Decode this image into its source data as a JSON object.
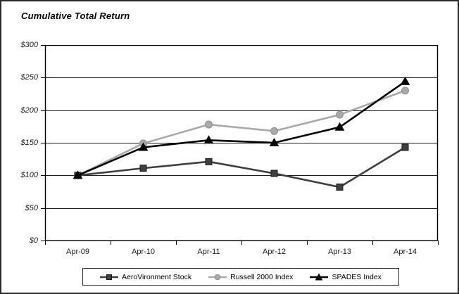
{
  "chart_data": {
    "type": "line",
    "title": "Cumulative Total Return",
    "categories": [
      "Apr-09",
      "Apr-10",
      "Apr-11",
      "Apr-12",
      "Apr-13",
      "Apr-14"
    ],
    "series": [
      {
        "name": "AeroVironment Stock",
        "marker": "square",
        "color": "#3f3f3f",
        "marker_edge": "#1a1a1a",
        "values": [
          100,
          111,
          121,
          103,
          82,
          143
        ]
      },
      {
        "name": "Russell 2000 Index",
        "marker": "circle",
        "color": "#a9a9a9",
        "marker_edge": "#8f8f8f",
        "values": [
          100,
          149,
          178,
          168,
          193,
          230
        ]
      },
      {
        "name": "SPADES Index",
        "marker": "triangle",
        "color": "#000000",
        "marker_edge": "#000000",
        "values": [
          100,
          143,
          154,
          150,
          174,
          244
        ]
      }
    ],
    "xlabel": "",
    "ylabel": "",
    "ylim": [
      0,
      300
    ],
    "ytick_step": 50,
    "ytick_labels": [
      "$0",
      "$50",
      "$100",
      "$150",
      "$200",
      "$250",
      "$300"
    ],
    "grid": true,
    "grid_color": "#1f1f1f",
    "frame_color": "#000000",
    "legend_position": "bottom"
  }
}
